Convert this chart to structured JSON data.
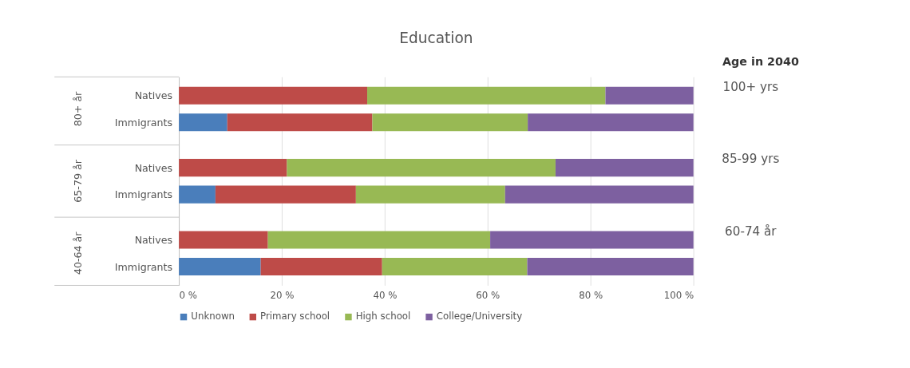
{
  "chart_data": {
    "type": "bar",
    "orientation": "horizontal",
    "stacked": true,
    "title": "Education",
    "categories": [
      "Natives",
      "Immigrants",
      "Natives",
      "Immigrants",
      "Natives",
      "Immigrants"
    ],
    "series": [
      {
        "name": "Unknown",
        "color": "#4a7ebb",
        "values": [
          0,
          9.4,
          0,
          7.1,
          0,
          15.9
        ]
      },
      {
        "name": "Primary school",
        "color": "#be4b48",
        "values": [
          36.6,
          28.2,
          21.0,
          27.3,
          17.3,
          23.6
        ]
      },
      {
        "name": "High school",
        "color": "#98b954",
        "values": [
          46.3,
          30.2,
          52.2,
          29.0,
          43.2,
          28.2
        ]
      },
      {
        "name": "College/University",
        "color": "#7d60a0",
        "values": [
          17.1,
          32.2,
          26.8,
          36.6,
          39.5,
          32.3
        ]
      }
    ],
    "xlim": [
      0,
      100
    ],
    "xticks": [
      {
        "value": 0,
        "label": "0 %"
      },
      {
        "value": 20,
        "label": "20 %"
      },
      {
        "value": 40,
        "label": "40 %"
      },
      {
        "value": 60,
        "label": "60 %"
      },
      {
        "value": 80,
        "label": "80 %"
      },
      {
        "value": 100,
        "label": "100 %"
      }
    ],
    "grid": "x",
    "legend": "bottom",
    "annotations": [
      "80+ år",
      "65-79 år",
      "40-64 år",
      "Age in 2040",
      "100+ yrs",
      "85-99 yrs",
      "60-74 år"
    ]
  }
}
